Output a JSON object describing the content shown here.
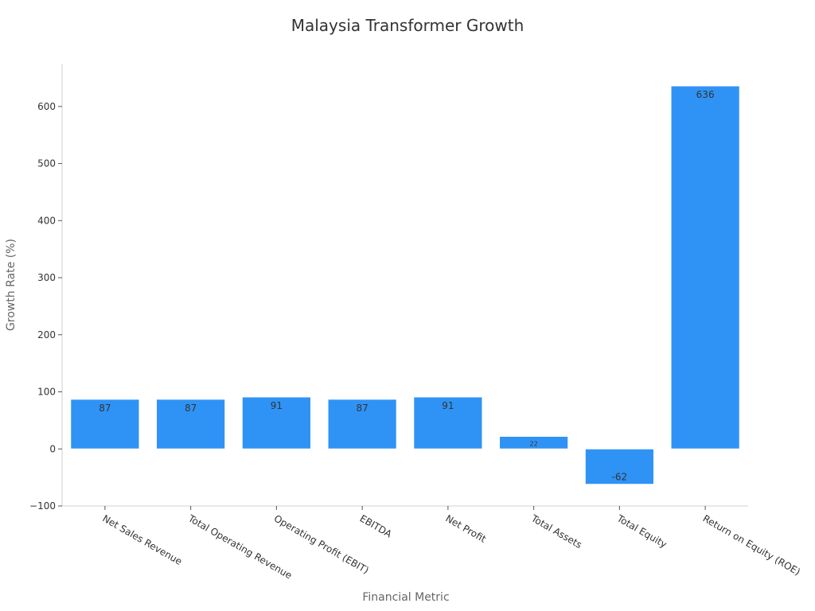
{
  "chart_data": {
    "type": "bar",
    "title": "Malaysia Transformer Growth",
    "xlabel": "Financial Metric",
    "ylabel": "Growth Rate (%)",
    "categories": [
      "Net Sales Revenue",
      "Total Operating Revenue",
      "Operating Profit (EBIT)",
      "EBITDA",
      "Net Profit",
      "Total Assets",
      "Total Equity",
      "Return on Equity (ROE)"
    ],
    "values": [
      87,
      87,
      91,
      87,
      91,
      22,
      -62,
      636
    ],
    "value_labels": [
      "87",
      "87",
      "91",
      "87",
      "91",
      "22",
      "-62",
      "636"
    ],
    "ylim": [
      -100,
      675
    ],
    "yticks": [
      -100,
      0,
      100,
      200,
      300,
      400,
      500,
      600
    ],
    "ytick_labels": [
      "−100",
      "0",
      "100",
      "200",
      "300",
      "400",
      "500",
      "600"
    ],
    "grid": false,
    "legend": "none",
    "bar_color": "#2f93f5"
  }
}
